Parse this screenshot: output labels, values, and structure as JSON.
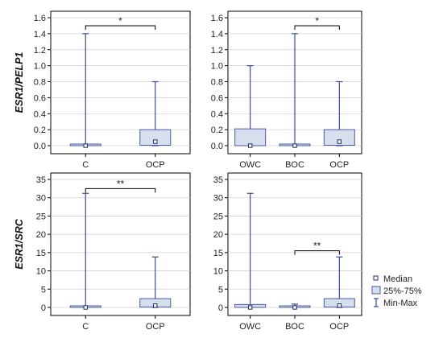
{
  "colors": {
    "whisker": "#3a4a9a",
    "box_fill": "#d6dfee",
    "box_stroke": "#4a5aa0",
    "grid": "#d0d0d0",
    "frame": "#000000"
  },
  "legend": {
    "items": [
      {
        "label": "Median",
        "icon": "median-square-icon"
      },
      {
        "label": "25%-75%",
        "icon": "box-swatch-icon"
      },
      {
        "label": "Min-Max",
        "icon": "whisker-icon"
      }
    ]
  },
  "chart_data": [
    {
      "type": "box",
      "id": "top-left",
      "ylabel": "ESR1/PELP1",
      "ylim": [
        0,
        1.6
      ],
      "yticks": [
        "0.0",
        "0.2",
        "0.4",
        "0.6",
        "0.8",
        "1.0",
        "1.2",
        "1.4",
        "1.6"
      ],
      "ytick_values": [
        0,
        0.2,
        0.4,
        0.6,
        0.8,
        1.0,
        1.2,
        1.4,
        1.6
      ],
      "grid": true,
      "categories": [
        "C",
        "OCP"
      ],
      "boxes": [
        {
          "category": "C",
          "min": 0,
          "q1": 0,
          "median": 0,
          "q3": 0.02,
          "max": 1.4
        },
        {
          "category": "OCP",
          "min": 0,
          "q1": 0.005,
          "median": 0.05,
          "q3": 0.2,
          "max": 0.8
        }
      ],
      "significance": [
        {
          "from": "C",
          "to": "OCP",
          "label": "*",
          "y": 1.5
        }
      ]
    },
    {
      "type": "box",
      "id": "top-right",
      "ylabel": "",
      "ylim": [
        0,
        1.6
      ],
      "yticks": [
        "0.0",
        "0.2",
        "0.4",
        "0.6",
        "0.8",
        "1.0",
        "1.2",
        "1.4",
        "1.6"
      ],
      "ytick_values": [
        0,
        0.2,
        0.4,
        0.6,
        0.8,
        1.0,
        1.2,
        1.4,
        1.6
      ],
      "grid": true,
      "categories": [
        "OWC",
        "BOC",
        "OCP"
      ],
      "boxes": [
        {
          "category": "OWC",
          "min": 0,
          "q1": 0,
          "median": 0,
          "q3": 0.21,
          "max": 1.0
        },
        {
          "category": "BOC",
          "min": 0,
          "q1": 0,
          "median": 0,
          "q3": 0.01,
          "max": 1.4
        },
        {
          "category": "OCP",
          "min": 0,
          "q1": 0.005,
          "median": 0.05,
          "q3": 0.2,
          "max": 0.8
        }
      ],
      "significance": [
        {
          "from": "BOC",
          "to": "OCP",
          "label": "*",
          "y": 1.5
        }
      ]
    },
    {
      "type": "box",
      "id": "bottom-left",
      "ylabel": "ESR1/SRC",
      "ylim": [
        0,
        35
      ],
      "yticks": [
        "0",
        "5",
        "10",
        "15",
        "20",
        "25",
        "30",
        "35"
      ],
      "ytick_values": [
        0,
        5,
        10,
        15,
        20,
        25,
        30,
        35
      ],
      "grid": true,
      "categories": [
        "C",
        "OCP"
      ],
      "boxes": [
        {
          "category": "C",
          "min": 0,
          "q1": 0,
          "median": 0,
          "q3": 0.1,
          "max": 31.2
        },
        {
          "category": "OCP",
          "min": 0,
          "q1": 0.1,
          "median": 0.5,
          "q3": 2.4,
          "max": 13.8
        }
      ],
      "significance": [
        {
          "from": "C",
          "to": "OCP",
          "label": "**",
          "y": 32.5
        }
      ]
    },
    {
      "type": "box",
      "id": "bottom-right",
      "ylabel": "",
      "ylim": [
        0,
        35
      ],
      "yticks": [
        "0",
        "5",
        "10",
        "15",
        "20",
        "25",
        "30",
        "35"
      ],
      "ytick_values": [
        0,
        5,
        10,
        15,
        20,
        25,
        30,
        35
      ],
      "grid": true,
      "categories": [
        "OWC",
        "BOC",
        "OCP"
      ],
      "boxes": [
        {
          "category": "OWC",
          "min": 0,
          "q1": 0,
          "median": 0,
          "q3": 0.8,
          "max": 31.2
        },
        {
          "category": "BOC",
          "min": 0,
          "q1": 0,
          "median": 0,
          "q3": 0.1,
          "max": 0.9
        },
        {
          "category": "OCP",
          "min": 0,
          "q1": 0.1,
          "median": 0.5,
          "q3": 2.4,
          "max": 13.8
        }
      ],
      "significance": [
        {
          "from": "BOC",
          "to": "OCP",
          "label": "**",
          "y": 15.5
        }
      ]
    }
  ]
}
